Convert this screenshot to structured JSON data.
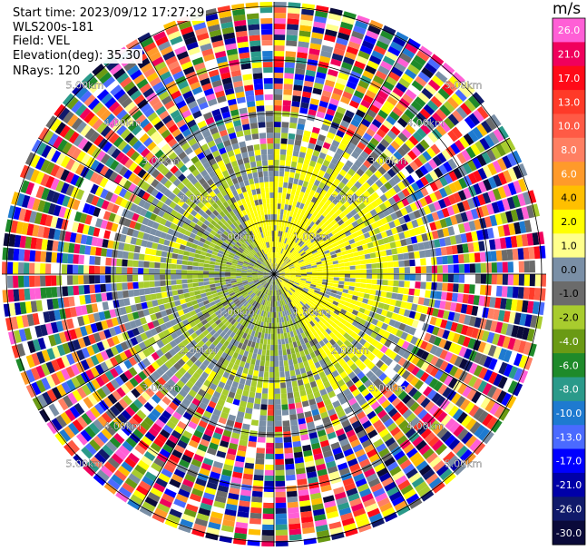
{
  "info": {
    "start_time": "Start time: 2023/09/12 17:27:29",
    "instrument": "WLS200s-181",
    "field": "Field: VEL",
    "elevation": "Elevation(deg): 35.30",
    "nrays": "NRays: 120"
  },
  "colorbar": {
    "unit": "m/s",
    "ticks": [
      "26.0",
      "21.0",
      "17.0",
      "13.0",
      "10.0",
      "8.0",
      "6.0",
      "4.0",
      "2.0",
      "1.0",
      "0.0",
      "-1.0",
      "-2.0",
      "-4.0",
      "-6.0",
      "-8.0",
      "-10.0",
      "-13.0",
      "-17.0",
      "-21.0",
      "-26.0",
      "-30.0"
    ],
    "colors": [
      "#ff5fd6",
      "#f0005c",
      "#ff0a18",
      "#ff3a28",
      "#ff5a45",
      "#ff7f62",
      "#ff9a2a",
      "#ffbf00",
      "#ffff00",
      "#ffff8c",
      "#7a8fa6",
      "#6b6b6b",
      "#a8cc2e",
      "#6a9a14",
      "#1e8a2a",
      "#2a9a8a",
      "#1e7ad0",
      "#4a6aff",
      "#0000ff",
      "#0000a8",
      "#101a6a",
      "#0a0a3a"
    ]
  },
  "chart_data": {
    "type": "heatmap",
    "title": "",
    "field": "VEL",
    "nrays": 120,
    "elevation_deg": 35.3,
    "range_ring_labels": [
      "1.00km",
      "2.00km",
      "3.00km",
      "4.00km",
      "5.00km"
    ],
    "color_scale_unit": "m/s",
    "color_scale_range": [
      -30.0,
      26.0
    ],
    "pattern": "noise-dominated outer rings; near-field region shows yellow (positive ~1-2 m/s) toward north-east and green/grey (negative ~-1 to -2 m/s) toward west and south"
  }
}
